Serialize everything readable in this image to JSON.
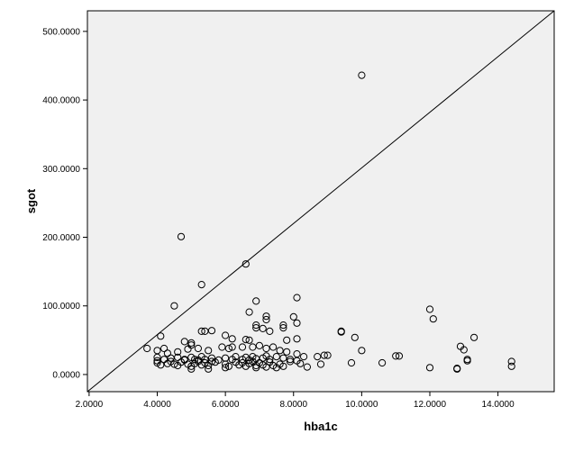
{
  "chart_data": {
    "type": "scatter",
    "xlabel": "hba1c",
    "ylabel": "sgot",
    "xlim": [
      1.95,
      15.65
    ],
    "ylim": [
      -25,
      530
    ],
    "xticks": [
      2,
      4,
      6,
      8,
      10,
      12,
      14
    ],
    "yticks": [
      0,
      100,
      200,
      300,
      400,
      500
    ],
    "xtick_labels": [
      "2.0000",
      "4.0000",
      "6.0000",
      "8.0000",
      "10.0000",
      "12.0000",
      "14.0000"
    ],
    "ytick_labels": [
      "0.0000",
      "100.0000",
      "200.0000",
      "300.0000",
      "400.0000",
      "500.0000"
    ],
    "reference_line": "diagonal",
    "grid": false,
    "colors": {
      "plot_background": "#f0f0f0",
      "marker_stroke": "#000000",
      "axis": "#000000"
    },
    "points": [
      [
        10.0,
        436
      ],
      [
        4.7,
        201
      ],
      [
        6.6,
        161
      ],
      [
        5.3,
        131
      ],
      [
        4.5,
        100
      ],
      [
        12.0,
        95
      ],
      [
        12.1,
        81
      ],
      [
        6.9,
        107
      ],
      [
        8.1,
        112
      ],
      [
        6.7,
        91
      ],
      [
        7.2,
        85
      ],
      [
        8.0,
        84
      ],
      [
        7.2,
        80
      ],
      [
        8.1,
        75
      ],
      [
        6.9,
        72
      ],
      [
        7.7,
        72
      ],
      [
        6.9,
        68
      ],
      [
        7.7,
        68
      ],
      [
        7.1,
        67
      ],
      [
        7.3,
        63
      ],
      [
        9.4,
        63
      ],
      [
        9.4,
        62
      ],
      [
        5.3,
        63
      ],
      [
        5.4,
        63
      ],
      [
        5.6,
        64
      ],
      [
        13.3,
        54
      ],
      [
        9.8,
        54
      ],
      [
        8.1,
        52
      ],
      [
        6.6,
        51
      ],
      [
        6.7,
        50
      ],
      [
        4.1,
        56
      ],
      [
        6.0,
        57
      ],
      [
        6.2,
        52
      ],
      [
        4.8,
        48
      ],
      [
        5.0,
        46
      ],
      [
        5.0,
        43
      ],
      [
        7.8,
        50
      ],
      [
        12.9,
        41
      ],
      [
        13.0,
        36
      ],
      [
        10.0,
        35
      ],
      [
        3.7,
        38
      ],
      [
        4.2,
        38
      ],
      [
        4.0,
        35
      ],
      [
        4.3,
        31
      ],
      [
        4.6,
        33
      ],
      [
        4.9,
        37
      ],
      [
        5.2,
        38
      ],
      [
        5.5,
        35
      ],
      [
        5.9,
        40
      ],
      [
        6.1,
        38
      ],
      [
        6.2,
        40
      ],
      [
        6.5,
        40
      ],
      [
        6.8,
        40
      ],
      [
        7.0,
        42
      ],
      [
        7.2,
        38
      ],
      [
        7.4,
        40
      ],
      [
        7.6,
        35
      ],
      [
        7.8,
        33
      ],
      [
        8.1,
        30
      ],
      [
        8.3,
        26
      ],
      [
        8.7,
        26
      ],
      [
        8.9,
        28
      ],
      [
        9.0,
        28
      ],
      [
        11.0,
        27
      ],
      [
        11.1,
        27
      ],
      [
        4.0,
        25
      ],
      [
        4.2,
        22
      ],
      [
        4.4,
        24
      ],
      [
        4.6,
        25
      ],
      [
        4.8,
        22
      ],
      [
        5.0,
        25
      ],
      [
        5.1,
        22
      ],
      [
        5.3,
        26
      ],
      [
        5.4,
        22
      ],
      [
        5.6,
        24
      ],
      [
        5.8,
        21
      ],
      [
        6.0,
        24
      ],
      [
        6.2,
        22
      ],
      [
        6.3,
        26
      ],
      [
        6.5,
        22
      ],
      [
        6.6,
        25
      ],
      [
        6.7,
        21
      ],
      [
        6.8,
        26
      ],
      [
        6.9,
        23
      ],
      [
        7.1,
        24
      ],
      [
        7.2,
        27
      ],
      [
        7.3,
        22
      ],
      [
        7.5,
        26
      ],
      [
        7.7,
        24
      ],
      [
        7.9,
        22
      ],
      [
        8.1,
        20
      ],
      [
        4.0,
        17
      ],
      [
        4.1,
        14
      ],
      [
        4.3,
        16
      ],
      [
        4.5,
        15
      ],
      [
        4.6,
        13
      ],
      [
        4.7,
        18
      ],
      [
        4.9,
        15
      ],
      [
        5.0,
        12
      ],
      [
        5.1,
        16
      ],
      [
        5.2,
        19
      ],
      [
        5.3,
        14
      ],
      [
        5.4,
        17
      ],
      [
        5.5,
        13
      ],
      [
        5.7,
        18
      ],
      [
        6.0,
        15
      ],
      [
        6.1,
        12
      ],
      [
        6.3,
        18
      ],
      [
        6.4,
        14
      ],
      [
        6.5,
        17
      ],
      [
        6.6,
        12
      ],
      [
        6.7,
        16
      ],
      [
        6.8,
        19
      ],
      [
        6.9,
        13
      ],
      [
        7.0,
        17
      ],
      [
        7.1,
        14
      ],
      [
        7.2,
        11
      ],
      [
        7.3,
        18
      ],
      [
        7.4,
        13
      ],
      [
        7.6,
        15
      ],
      [
        7.7,
        12
      ],
      [
        7.9,
        19
      ],
      [
        8.2,
        16
      ],
      [
        8.4,
        11
      ],
      [
        8.8,
        15
      ],
      [
        9.7,
        17
      ],
      [
        10.6,
        17
      ],
      [
        12.0,
        10
      ],
      [
        12.8,
        8
      ],
      [
        13.1,
        20
      ],
      [
        13.1,
        22
      ],
      [
        14.4,
        19
      ],
      [
        14.4,
        12
      ],
      [
        4.0,
        20
      ],
      [
        4.4,
        19
      ],
      [
        4.8,
        21
      ],
      [
        5.2,
        21
      ],
      [
        5.6,
        19
      ],
      [
        5.0,
        8
      ],
      [
        5.5,
        8
      ],
      [
        6.0,
        10
      ],
      [
        6.9,
        10
      ],
      [
        7.5,
        10
      ],
      [
        12.8,
        9
      ]
    ]
  }
}
